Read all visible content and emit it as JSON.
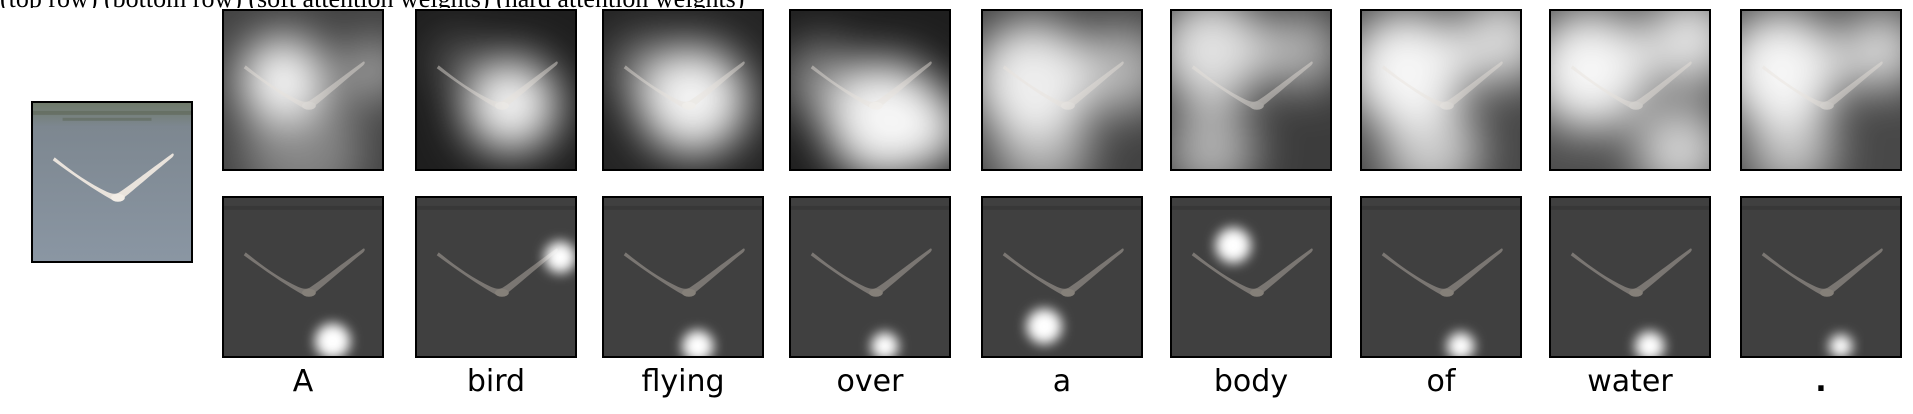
{
  "caption_fragment": "(top row)                          (bottom row)                          (soft attention weights)                    (hard attention weights)",
  "image_alt_subject": "bird-over-water",
  "columns": [
    {
      "word": "A"
    },
    {
      "word": "bird"
    },
    {
      "word": "flying"
    },
    {
      "word": "over"
    },
    {
      "word": "a"
    },
    {
      "word": "body"
    },
    {
      "word": "of"
    },
    {
      "word": "water"
    },
    {
      "word": "."
    }
  ],
  "colors": {
    "water": "#7f8a94",
    "bird": "#e8e2dc",
    "hard_bg": "#404040"
  }
}
